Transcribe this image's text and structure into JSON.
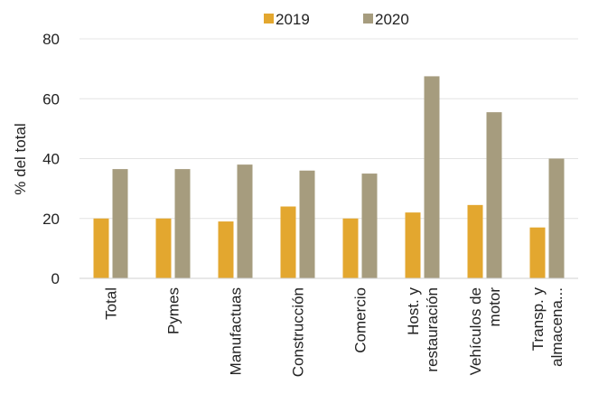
{
  "chart_data": {
    "type": "bar",
    "categories": [
      [
        "Total"
      ],
      [
        "Pymes"
      ],
      [
        "Manufactuas"
      ],
      [
        "Construcción"
      ],
      [
        "Comercio"
      ],
      [
        "Host. y",
        "restauración"
      ],
      [
        "Vehículos de",
        "motor"
      ],
      [
        "Transp. y",
        "almacena..."
      ]
    ],
    "series": [
      {
        "name": "2019",
        "color": "#e3a72f",
        "values": [
          20,
          20,
          19,
          24,
          20,
          22,
          24.5,
          17
        ]
      },
      {
        "name": "2020",
        "color": "#a69c7e",
        "values": [
          36.5,
          36.5,
          38,
          36,
          35,
          67.5,
          55.5,
          40
        ]
      }
    ],
    "ylabel": "% del total",
    "ylim": [
      0,
      80
    ],
    "yticks": [
      0,
      20,
      40,
      60,
      80
    ],
    "grid": true,
    "legend_position": "top"
  }
}
